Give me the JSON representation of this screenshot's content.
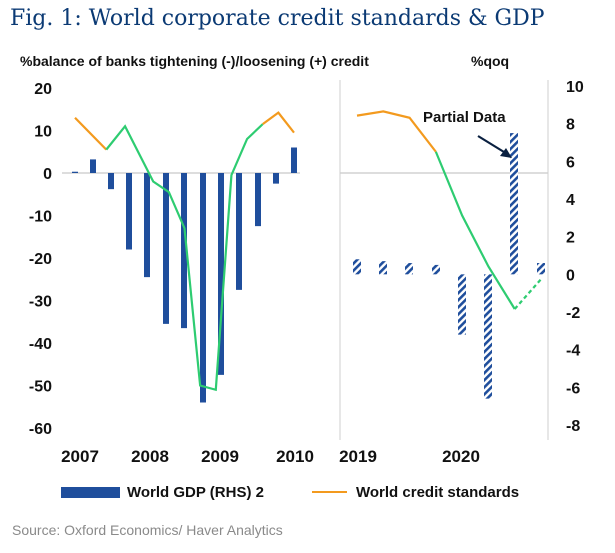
{
  "title": "Fig. 1: World corporate credit standards & GDP",
  "source": "Source: Oxford Economics/ Haver Analytics",
  "colors": {
    "bar": "#1f4e9c",
    "standards": "#f39a1e",
    "green": "#2ecc71",
    "title": "#0b3a74"
  },
  "chart_data": [
    {
      "type": "bar+line",
      "panel": "2007-2010",
      "ylabel_left": "%balance of banks tightening (-)/loosening (+) credit",
      "ylim_left": [
        -60,
        20
      ],
      "yticks_left": [
        "20",
        "10",
        "0",
        "-10",
        "-20",
        "-30",
        "-40",
        "-50",
        "-60"
      ],
      "xticks": [
        "2007",
        "2008",
        "2009",
        "2010"
      ],
      "bars_world_gdp_rhs": [
        0.3,
        3.2,
        -3.8,
        -18,
        -24.5,
        -35.5,
        -36.5,
        -54,
        -47.5,
        -27.5,
        -12.5,
        -2.5,
        6
      ],
      "world_credit_standards": [
        {
          "x": 2007.0,
          "y": 13
        },
        {
          "x": 2007.5,
          "y": 5.5
        },
        {
          "x": 2007.8,
          "y": 11
        },
        {
          "x": 2008.25,
          "y": -2
        },
        {
          "x": 2008.5,
          "y": -4.5
        },
        {
          "x": 2008.75,
          "y": -13
        },
        {
          "x": 2009.0,
          "y": -50
        },
        {
          "x": 2009.25,
          "y": -51
        },
        {
          "x": 2009.5,
          "y": -0.5
        },
        {
          "x": 2009.75,
          "y": 8
        },
        {
          "x": 2010.0,
          "y": 11.5
        },
        {
          "x": 2010.25,
          "y": 14.2
        },
        {
          "x": 2010.5,
          "y": 9.5
        }
      ]
    },
    {
      "type": "bar+line",
      "panel": "2019-2020",
      "ylabel_right": "%qoq",
      "ylim_right": [
        -8,
        10
      ],
      "yticks_right": [
        "10",
        "8",
        "6",
        "4",
        "2",
        "0",
        "-2",
        "-4",
        "-6",
        "-8"
      ],
      "xticks": [
        "2019",
        "2020"
      ],
      "bars_world_gdp_rhs": [
        0.8,
        0.7,
        0.6,
        0.5,
        -3.2,
        -6.6,
        7.5,
        0.6
      ],
      "partial_data_bar_indices": [
        6,
        7
      ],
      "world_credit_standards": [
        {
          "x": 2019.0,
          "y": 13.5
        },
        {
          "x": 2019.25,
          "y": 14.5
        },
        {
          "x": 2019.5,
          "y": 13
        },
        {
          "x": 2019.75,
          "y": 5
        },
        {
          "x": 2020.0,
          "y": -10
        },
        {
          "x": 2020.25,
          "y": -22
        },
        {
          "x": 2020.5,
          "y": -32
        },
        {
          "x": 2020.75,
          "y": -25
        }
      ],
      "annotation": "Partial Data"
    }
  ],
  "legend": {
    "bar_label": "World GDP (RHS) 2",
    "line_label": "World credit standards"
  }
}
